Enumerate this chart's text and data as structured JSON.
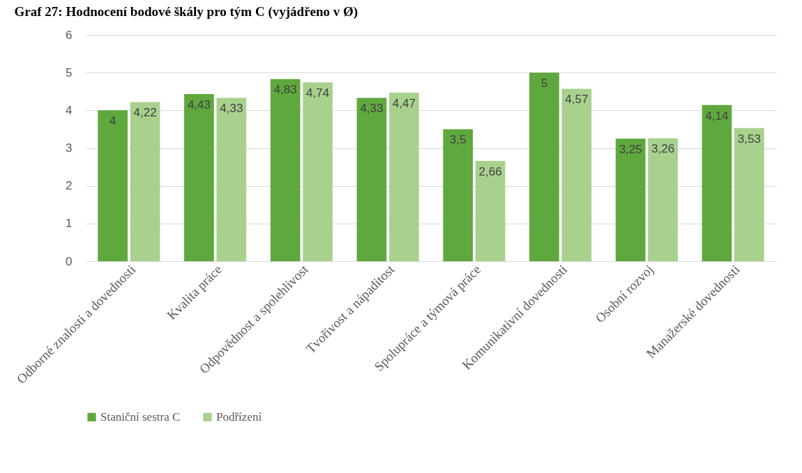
{
  "chart_data": {
    "type": "bar",
    "title": "Graf 27: Hodnocení bodové škály pro tým C (vyjádřeno v Ø)",
    "categories": [
      "Odborné znalosti a dovednosti",
      "Kvalita práce",
      "Odpovědnost a spolehlivost",
      "Tvořivost a nápaditost",
      "Spolupráce a týmová práce",
      "Komunikativní dovednosti",
      "Osobní rozvoj",
      "Manažerské dovednosti"
    ],
    "series": [
      {
        "name": "Staniční sestra C",
        "color": "#5fa83e",
        "values": [
          4,
          4.43,
          4.83,
          4.33,
          3.5,
          5,
          3.25,
          4.14
        ],
        "value_labels": [
          "4",
          "4,43",
          "4,83",
          "4,33",
          "3,5",
          "5",
          "3,25",
          "4,14"
        ]
      },
      {
        "name": "Podřízení",
        "color": "#a9d18e",
        "values": [
          4.22,
          4.33,
          4.74,
          4.47,
          2.66,
          4.57,
          3.26,
          3.53
        ],
        "value_labels": [
          "4,22",
          "4,33",
          "4,74",
          "4,47",
          "2,66",
          "4,57",
          "3,26",
          "3,53"
        ]
      }
    ],
    "ylim": [
      0,
      6
    ],
    "yticks": [
      0,
      1,
      2,
      3,
      4,
      5,
      6
    ],
    "grid": "y",
    "legend": "bottom"
  }
}
